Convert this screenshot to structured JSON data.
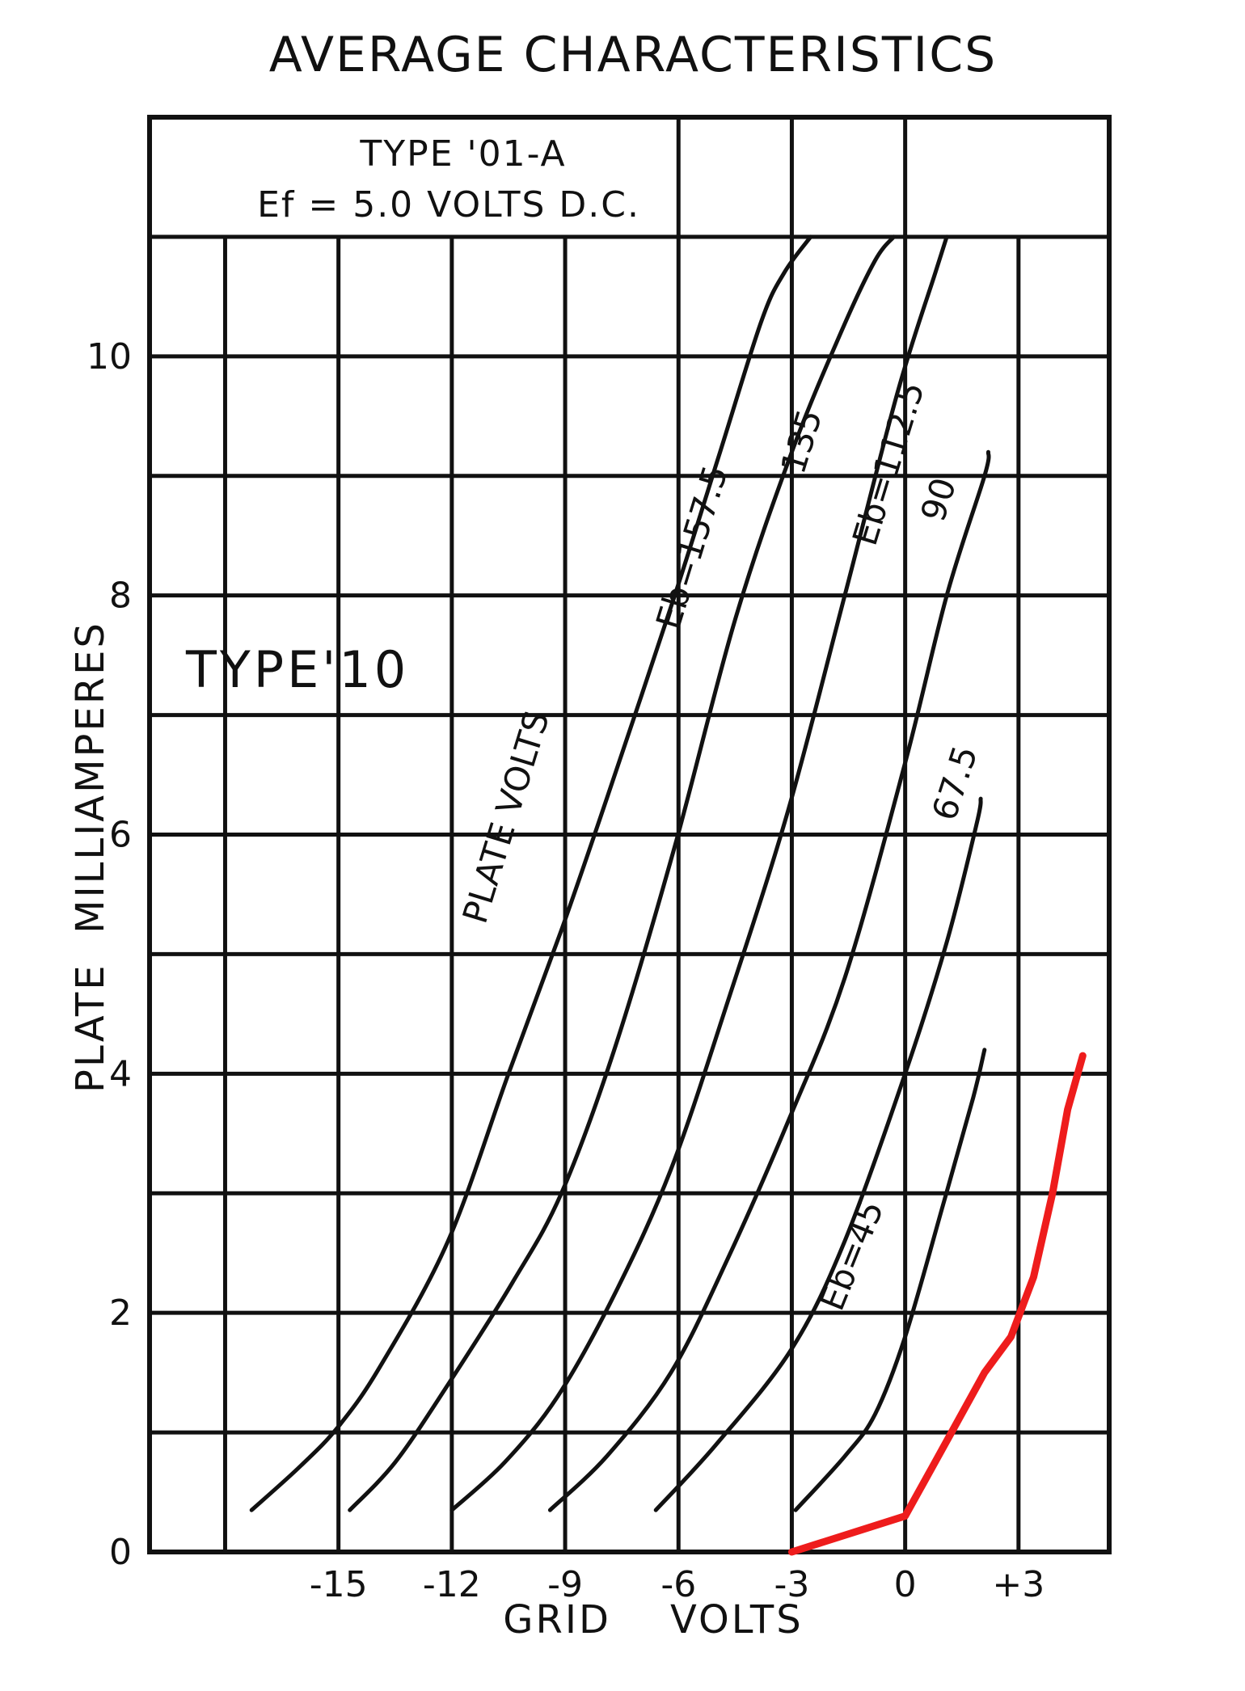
{
  "chart_data": {
    "type": "line",
    "title": "AVERAGE CHARACTERISTICS",
    "xlabel": "GRID    VOLTS",
    "ylabel": "PLATE  MILLIAMPERES",
    "xlim": [
      -20,
      5.4
    ],
    "ylim": [
      0,
      12
    ],
    "x_ticks": [
      -15,
      -12,
      -9,
      -6,
      -3,
      0,
      3
    ],
    "x_tick_labels": [
      "-15",
      "-12",
      "-9",
      "-6",
      "-3",
      "0",
      "+3"
    ],
    "y_ticks": [
      0,
      2,
      4,
      6,
      8,
      10
    ],
    "y_tick_labels": [
      "0",
      "2",
      "4",
      "6",
      "8",
      "10"
    ],
    "grid": true,
    "header_box": {
      "line1": "TYPE '01-A",
      "line2": "Ef = 5.0 VOLTS D.C."
    },
    "annotations": {
      "type_label": "TYPE'10",
      "plate_volts": "PLATE  VOLTS"
    },
    "series": [
      {
        "name": "Eb=157.5",
        "color": "#111111",
        "x": [
          -17.3,
          -16,
          -15,
          -13.9,
          -12.1,
          -10.5,
          -9.1,
          -7.9,
          -6.1,
          -4.9,
          -3.8,
          -3.2,
          -2.5
        ],
        "y": [
          0.35,
          0.72,
          1.05,
          1.55,
          2.6,
          4.0,
          5.2,
          6.3,
          8.0,
          9.2,
          10.3,
          10.7,
          11.0
        ]
      },
      {
        "name": "135",
        "color": "#111111",
        "x": [
          -14.7,
          -13.5,
          -12.1,
          -10.4,
          -9.1,
          -7.7,
          -6.1,
          -4.5,
          -3.0,
          -1.7,
          -0.8,
          -0.3
        ],
        "y": [
          0.35,
          0.75,
          1.4,
          2.25,
          3.0,
          4.2,
          5.9,
          7.8,
          9.2,
          10.2,
          10.8,
          11.0
        ]
      },
      {
        "name": "Eb=112.5",
        "color": "#111111",
        "x": [
          -12.0,
          -10.6,
          -9.2,
          -7.7,
          -6.2,
          -4.7,
          -3.1,
          -1.6,
          -0.2,
          0.8,
          1.1
        ],
        "y": [
          0.35,
          0.75,
          1.3,
          2.15,
          3.2,
          4.6,
          6.2,
          8.0,
          9.7,
          10.7,
          11.0
        ]
      },
      {
        "name": "90",
        "color": "#111111",
        "x": [
          -9.4,
          -7.9,
          -6.2,
          -4.7,
          -3.1,
          -1.6,
          0.0,
          1.1,
          2.1,
          2.2
        ],
        "y": [
          0.35,
          0.8,
          1.5,
          2.45,
          3.6,
          4.8,
          6.6,
          8.0,
          9.0,
          9.2
        ]
      },
      {
        "name": "67.5",
        "color": "#111111",
        "x": [
          -6.6,
          -5.0,
          -3.0,
          -1.6,
          0.0,
          1.1,
          1.9,
          2.0
        ],
        "y": [
          0.35,
          0.9,
          1.7,
          2.6,
          4.0,
          5.1,
          6.1,
          6.3
        ]
      },
      {
        "name": "Eb=45",
        "color": "#111111",
        "x": [
          -2.9,
          -1.6,
          -0.8,
          0.0,
          1.0,
          1.8,
          2.1
        ],
        "y": [
          0.35,
          0.8,
          1.15,
          1.8,
          2.9,
          3.8,
          4.2
        ]
      },
      {
        "name": "",
        "color": "#ee1c1c",
        "x": [
          -3.0,
          0.0,
          0.7,
          1.4,
          2.1,
          2.8,
          3.4,
          3.9,
          4.3,
          4.7
        ],
        "y": [
          0.0,
          0.3,
          0.7,
          1.1,
          1.5,
          1.8,
          2.3,
          3.0,
          3.7,
          4.15
        ]
      }
    ],
    "curve_labels": [
      {
        "text": "Eb=157.5",
        "x": -6.0,
        "y": 7.7,
        "angle": -73
      },
      {
        "text": "135",
        "x": -2.7,
        "y": 9.0,
        "angle": -73
      },
      {
        "text": "Eb=112.5",
        "x": -0.8,
        "y": 8.4,
        "angle": -73
      },
      {
        "text": "90",
        "x": 1.0,
        "y": 8.6,
        "angle": -72
      },
      {
        "text": "67.5",
        "x": 1.3,
        "y": 6.1,
        "angle": -72
      },
      {
        "text": "Eb=45",
        "x": -1.7,
        "y": 2.0,
        "angle": -68
      }
    ]
  }
}
